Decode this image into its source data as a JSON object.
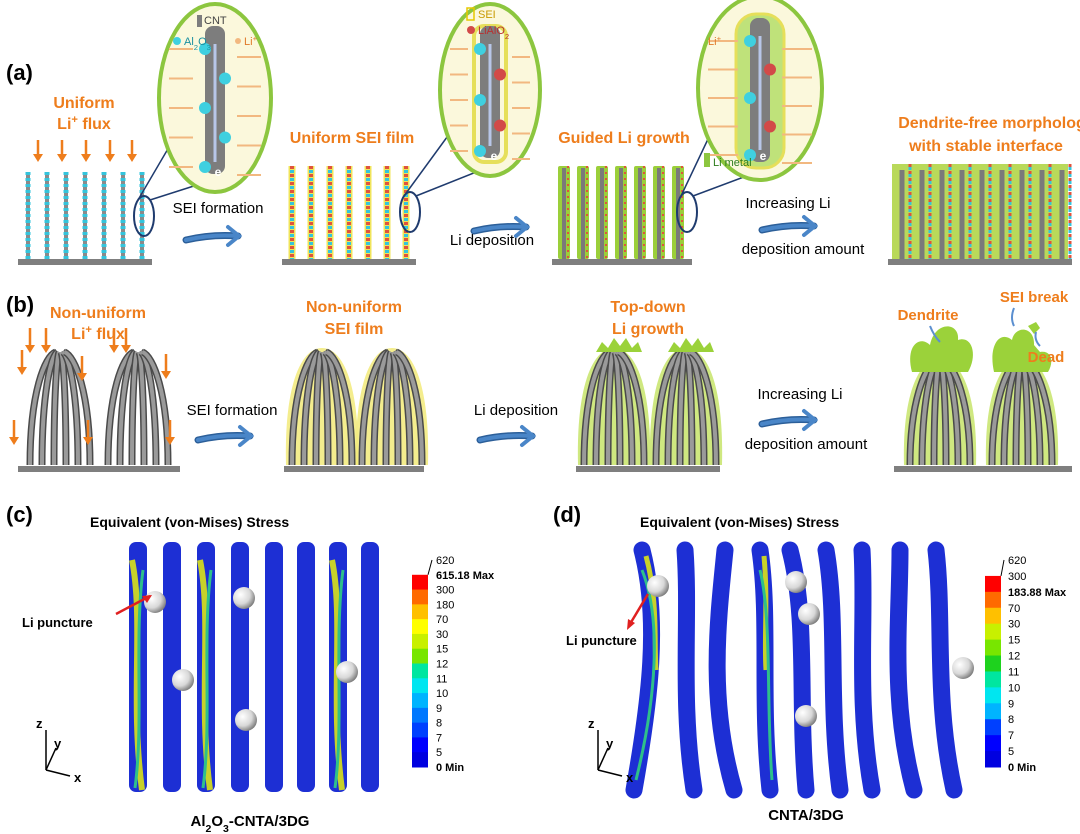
{
  "panel_a": {
    "label": "(a)",
    "flux_1": "Uniform",
    "flux_2": [
      {
        "text": "Li"
      },
      {
        "sup": "+"
      },
      {
        "text": " flux"
      }
    ],
    "zoom_1": {
      "cnt": "CNT",
      "al2o3": [
        {
          "text": "Al"
        },
        {
          "sub": "2"
        },
        {
          "text": "O"
        },
        {
          "sub": "3"
        }
      ],
      "li": [
        {
          "text": "Li"
        },
        {
          "sup": "+"
        }
      ],
      "electron": "e"
    },
    "zoom_2": {
      "sei": "SEI",
      "lialo2": [
        {
          "text": "LiAlO"
        },
        {
          "sub": "2"
        }
      ],
      "electron": "e"
    },
    "zoom_3": {
      "li": [
        {
          "text": "Li"
        },
        {
          "sup": "+"
        }
      ],
      "li_metal": "Li metal",
      "electron": "e"
    },
    "stage_2": "Uniform SEI film",
    "stage_3": "Guided Li growth",
    "stage_4_1": "Dendrite-free morpholog",
    "stage_4_2": "with stable interface",
    "step_1": "SEI formation",
    "step_2": "Li deposition",
    "step_3_1": "Increasing Li",
    "step_3_2": "deposition amount"
  },
  "panel_b": {
    "label": "(b)",
    "flux_1": "Non-uniform",
    "flux_2": [
      {
        "text": "Li"
      },
      {
        "sup": "+"
      },
      {
        "text": " flux"
      }
    ],
    "stage_2_1": "Non-uniform",
    "stage_2_2": "SEI film",
    "stage_3_1": "Top-down",
    "stage_3_2": "Li growth",
    "step_1": "SEI formation",
    "step_2": "Li deposition",
    "step_3_1": "Increasing Li",
    "step_3_2": "deposition amount",
    "dendrite": "Dendrite",
    "sei_break": "SEI break",
    "dead": "Dead"
  },
  "panel_c": {
    "label": "(c)",
    "title": "Equivalent (von-Mises) Stress",
    "puncture": "Li puncture",
    "colorbar_labels": [
      "620",
      "615.18 Max",
      "300",
      "180",
      "70",
      "30",
      "15",
      "12",
      "11",
      "10",
      "9",
      "8",
      "7",
      "5",
      "0 Min"
    ],
    "axes": {
      "z": "z",
      "y": "y",
      "x": "x"
    },
    "caption": [
      {
        "text": "Al"
      },
      {
        "sub": "2"
      },
      {
        "text": "O"
      },
      {
        "sub": "3"
      },
      {
        "text": "-CNTA/3DG"
      }
    ]
  },
  "panel_d": {
    "label": "(d)",
    "title": "Equivalent (von-Mises) Stress",
    "puncture": "Li puncture",
    "colorbar_labels": [
      "620",
      "300",
      "183.88 Max",
      "70",
      "30",
      "15",
      "12",
      "11",
      "10",
      "9",
      "8",
      "7",
      "5",
      "0 Min"
    ],
    "axes": {
      "z": "z",
      "y": "y",
      "x": "x"
    },
    "caption": "CNTA/3DG"
  }
}
